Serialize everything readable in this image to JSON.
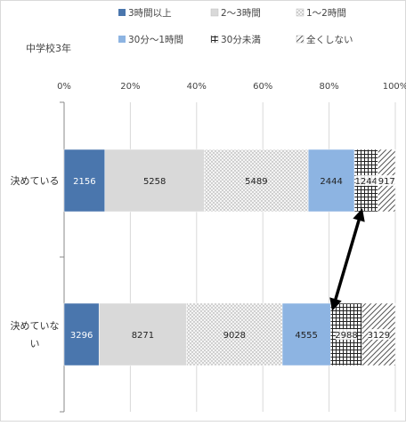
{
  "chart_data": {
    "type": "bar",
    "stacked": "percent",
    "orientation": "horizontal",
    "title": "中学校3年",
    "categories": [
      "決めている",
      "決めていない"
    ],
    "series": [
      {
        "name": "3時間以上",
        "values": [
          2156,
          3296
        ],
        "color": "#4a76ad",
        "pattern": "solid-dark"
      },
      {
        "name": "2～3時間",
        "values": [
          5258,
          8271
        ],
        "color": "#d9d9d9",
        "pattern": "solid-light"
      },
      {
        "name": "1～2時間",
        "values": [
          5489,
          9028
        ],
        "color": "#f2f2f2",
        "pattern": "dots"
      },
      {
        "name": "30分～1時間",
        "values": [
          2444,
          4555
        ],
        "color": "#8db4e2",
        "pattern": "solid-blue"
      },
      {
        "name": "30分未満",
        "values": [
          1244,
          2988
        ],
        "color": "#ffffff",
        "pattern": "grid"
      },
      {
        "name": "全くしない",
        "values": [
          917,
          3129
        ],
        "color": "#ffffff",
        "pattern": "diagonal"
      }
    ],
    "x_ticks": [
      "0%",
      "20%",
      "40%",
      "60%",
      "80%",
      "100%"
    ],
    "xlim": [
      0,
      100
    ],
    "grid": true,
    "legend_position": "top",
    "annotation": "double-headed arrow between the 30分未満 segments of both bars"
  }
}
